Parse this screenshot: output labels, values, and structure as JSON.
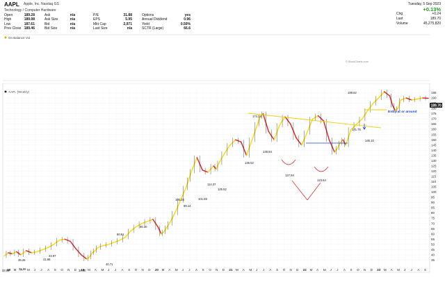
{
  "header": {
    "ticker": "AAPL",
    "name": "Apple, Inc.",
    "exchange": "Nasdaq GS",
    "sector": "Technology / Computer Hardware",
    "stats_col1": [
      {
        "label": "Open",
        "value": "189.28"
      },
      {
        "label": "High",
        "value": "189.98"
      },
      {
        "label": "Low",
        "value": "187.61"
      },
      {
        "label": "Prev Close",
        "value": "189.46"
      }
    ],
    "stats_col2": [
      {
        "label": "Ask",
        "value": "n/a"
      },
      {
        "label": "Ask Size",
        "value": "n/a"
      },
      {
        "label": "Bid",
        "value": "n/a"
      },
      {
        "label": "Bid Size",
        "value": "n/a"
      }
    ],
    "stats_col3": [
      {
        "label": "P/E",
        "value": "31.88"
      },
      {
        "label": "EPS",
        "value": "5.95"
      },
      {
        "label": "Mkt Cap",
        "value": "2,971"
      },
      {
        "label": "Last Size",
        "value": "n/a"
      }
    ],
    "stats_col4": [
      {
        "label": "Options",
        "value": "yes"
      },
      {
        "label": "Annual Dividend",
        "value": "0.96"
      },
      {
        "label": "Yield",
        "value": "0.50%"
      },
      {
        "label": "SCTR (Large)",
        "value": "66.6"
      }
    ],
    "date": "Tuesday, 5 Sep 2023",
    "change_pct": "+0.13%",
    "right_stats": [
      {
        "label": "Chg",
        "value": "+0.24"
      },
      {
        "label": "Last",
        "value": "189.70"
      },
      {
        "label": "Volume",
        "value": "45,275,820"
      }
    ],
    "panel_label": "On Balance Vol",
    "copyright": "© StockCharts.com"
  },
  "chart_data": {
    "type": "line",
    "title": "AAPL (Weekly)",
    "last_price": "189.70",
    "x_tick_labels": [
      "18",
      "M",
      "A",
      "M",
      "J",
      "J",
      "A",
      "S",
      "O",
      "N",
      "D",
      "19",
      "M",
      "A",
      "M",
      "J",
      "J",
      "A",
      "S",
      "O",
      "N",
      "D",
      "20",
      "M",
      "A",
      "M",
      "J",
      "J",
      "A",
      "S",
      "O",
      "N",
      "D",
      "21",
      "M",
      "A",
      "M",
      "J",
      "J",
      "A",
      "S",
      "O",
      "N",
      "D",
      "22",
      "M",
      "A",
      "M",
      "J",
      "J",
      "A",
      "S",
      "O",
      "N",
      "D",
      "23",
      "M",
      "A",
      "M",
      "J",
      "J",
      "A",
      "S"
    ],
    "ylim": [
      30,
      200
    ],
    "y_ticks": [
      195,
      190,
      185,
      180,
      175,
      170,
      165,
      160,
      155,
      150,
      145,
      140,
      135,
      130,
      125,
      120,
      115,
      110,
      105,
      100,
      95,
      90,
      85,
      80,
      75,
      70,
      65,
      60,
      55,
      50,
      45,
      40,
      35
    ],
    "series": [
      {
        "name": "AAPL",
        "x": [
          0,
          3,
          6,
          9,
          12,
          16,
          20,
          24,
          28,
          32,
          36,
          40,
          44,
          48,
          52,
          56,
          60,
          62,
          64,
          66,
          68,
          72,
          76,
          80,
          84,
          88,
          92,
          96,
          100,
          104,
          108,
          112,
          114,
          116,
          118,
          120,
          124,
          128,
          132,
          134,
          136,
          140,
          144,
          148,
          152,
          154,
          156,
          160,
          164,
          168,
          172,
          176,
          180,
          184,
          186,
          188,
          192,
          196,
          200,
          204,
          208,
          212,
          216,
          220,
          224,
          228,
          232,
          236,
          240,
          242,
          244,
          246,
          248,
          252,
          256,
          260,
          264,
          268,
          272,
          276,
          280,
          282,
          284,
          286,
          288,
          292,
          296,
          300,
          304,
          308
        ],
        "y": [
          39,
          42,
          41,
          43,
          40,
          44,
          42,
          43,
          45,
          47,
          50,
          54,
          55,
          53,
          46,
          40,
          36,
          38,
          42,
          44,
          47,
          49,
          50,
          52,
          54,
          57,
          63,
          67,
          70,
          72,
          74,
          66,
          60,
          62,
          66,
          70,
          80,
          92,
          104,
          112,
          120,
          133,
          121,
          119,
          125,
          122,
          128,
          137,
          145,
          150,
          148,
          135,
          150,
          165,
          172,
          175,
          158,
          150,
          164,
          172,
          165,
          152,
          145,
          157,
          170,
          173,
          168,
          150,
          138,
          142,
          147,
          150,
          145,
          160,
          165,
          170,
          178,
          185,
          190,
          196,
          192,
          183,
          178,
          180,
          188,
          190,
          188,
          189,
          190,
          189.7
        ]
      }
    ],
    "annotations": [
      "174.14",
      "171.76",
      "148.84",
      "136.52",
      "127.94",
      "123.64",
      "125.52",
      "114.37",
      "105.28",
      "99.14",
      "101.59",
      "86.30",
      "80.51",
      "41.96",
      "40.71",
      "43.97",
      "36.88",
      "35.25",
      "34.00",
      "33.93",
      "199.62",
      "146.10"
    ],
    "entry_label": "Entry at or around"
  }
}
